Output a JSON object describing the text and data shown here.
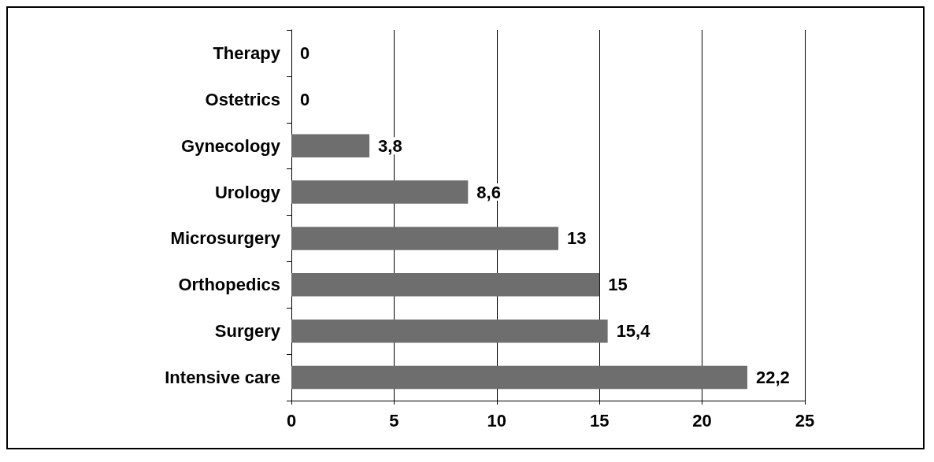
{
  "chart_data": {
    "type": "bar",
    "orientation": "horizontal",
    "categories": [
      "Therapy",
      "Ostetrics",
      "Gynecology",
      "Urology",
      "Microsurgery",
      "Orthopedics",
      "Surgery",
      "Intensive care"
    ],
    "values": [
      0,
      0,
      3.8,
      8.6,
      13,
      15,
      15.4,
      22.2
    ],
    "value_labels": [
      "0",
      "0",
      "3,8",
      "8,6",
      "13",
      "15",
      "15,4",
      "22,2"
    ],
    "color": "#6e6e6e",
    "xlim": [
      0,
      25
    ],
    "xticks": [
      0,
      5,
      10,
      15,
      20,
      25
    ],
    "grid": "x"
  }
}
